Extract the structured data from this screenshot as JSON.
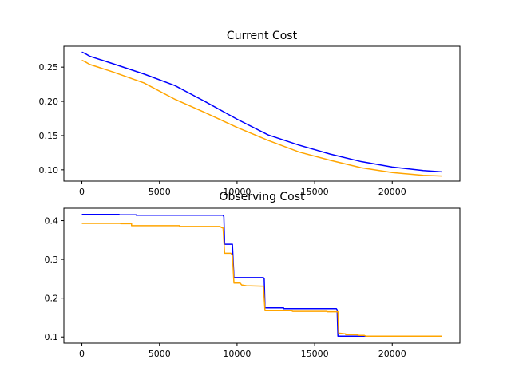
{
  "chart_data": [
    {
      "type": "line",
      "title": "Current Cost",
      "xlabel": "",
      "ylabel": "",
      "xlim": [
        -1160,
        24360
      ],
      "ylim": [
        0.0835,
        0.2805
      ],
      "xticks": [
        0,
        5000,
        10000,
        15000,
        20000
      ],
      "xtick_labels": [
        "0",
        "5000",
        "10000",
        "15000",
        "20000"
      ],
      "yticks": [
        0.1,
        0.15,
        0.2,
        0.25
      ],
      "ytick_labels": [
        "0.10",
        "0.15",
        "0.20",
        "0.25"
      ],
      "grid": false,
      "legend": false,
      "series": [
        {
          "color": "#0000ff",
          "points": [
            [
              0,
              0.272
            ],
            [
              200,
              0.27
            ],
            [
              500,
              0.266
            ],
            [
              2000,
              0.255
            ],
            [
              4000,
              0.24
            ],
            [
              6000,
              0.223
            ],
            [
              8000,
              0.199
            ],
            [
              10000,
              0.174
            ],
            [
              12000,
              0.151
            ],
            [
              14000,
              0.136
            ],
            [
              16000,
              0.123
            ],
            [
              18000,
              0.112
            ],
            [
              20000,
              0.104
            ],
            [
              22000,
              0.099
            ],
            [
              23200,
              0.097
            ]
          ]
        },
        {
          "color": "#ffa500",
          "points": [
            [
              0,
              0.26
            ],
            [
              200,
              0.258
            ],
            [
              500,
              0.254
            ],
            [
              2000,
              0.243
            ],
            [
              4000,
              0.227
            ],
            [
              6000,
              0.203
            ],
            [
              8000,
              0.183
            ],
            [
              10000,
              0.162
            ],
            [
              12000,
              0.143
            ],
            [
              14000,
              0.126
            ],
            [
              16000,
              0.114
            ],
            [
              18000,
              0.103
            ],
            [
              20000,
              0.096
            ],
            [
              22000,
              0.092
            ],
            [
              23200,
              0.091
            ]
          ]
        }
      ]
    },
    {
      "type": "line",
      "title": "Observing Cost",
      "xlabel": "",
      "ylabel": "",
      "xlim": [
        -1160,
        24360
      ],
      "ylim": [
        0.084,
        0.432
      ],
      "xticks": [
        0,
        5000,
        10000,
        15000,
        20000
      ],
      "xtick_labels": [
        "0",
        "5000",
        "10000",
        "15000",
        "20000"
      ],
      "yticks": [
        0.1,
        0.2,
        0.3,
        0.4
      ],
      "ytick_labels": [
        "0.1",
        "0.2",
        "0.3",
        "0.4"
      ],
      "grid": false,
      "legend": false,
      "series": [
        {
          "color": "#0000ff",
          "points": [
            [
              0,
              0.416
            ],
            [
              2400,
              0.416
            ],
            [
              2400,
              0.415
            ],
            [
              3500,
              0.415
            ],
            [
              3500,
              0.414
            ],
            [
              9100,
              0.414
            ],
            [
              9150,
              0.41
            ],
            [
              9200,
              0.339
            ],
            [
              9700,
              0.339
            ],
            [
              9800,
              0.253
            ],
            [
              11700,
              0.253
            ],
            [
              11750,
              0.25
            ],
            [
              11800,
              0.175
            ],
            [
              13000,
              0.175
            ],
            [
              13000,
              0.173
            ],
            [
              16400,
              0.173
            ],
            [
              16450,
              0.17
            ],
            [
              16500,
              0.102
            ],
            [
              23200,
              0.102
            ]
          ]
        },
        {
          "color": "#ffa500",
          "points": [
            [
              0,
              0.393
            ],
            [
              2500,
              0.393
            ],
            [
              2500,
              0.392
            ],
            [
              3200,
              0.392
            ],
            [
              3200,
              0.387
            ],
            [
              6300,
              0.387
            ],
            [
              6300,
              0.385
            ],
            [
              8900,
              0.385
            ],
            [
              9000,
              0.382
            ],
            [
              9100,
              0.381
            ],
            [
              9200,
              0.316
            ],
            [
              9600,
              0.316
            ],
            [
              9700,
              0.311
            ],
            [
              9800,
              0.239
            ],
            [
              10200,
              0.239
            ],
            [
              10300,
              0.234
            ],
            [
              10600,
              0.232
            ],
            [
              11600,
              0.231
            ],
            [
              11700,
              0.231
            ],
            [
              11800,
              0.168
            ],
            [
              13500,
              0.168
            ],
            [
              13600,
              0.166
            ],
            [
              15800,
              0.166
            ],
            [
              15800,
              0.165
            ],
            [
              16400,
              0.165
            ],
            [
              16500,
              0.165
            ],
            [
              16550,
              0.11
            ],
            [
              17000,
              0.108
            ],
            [
              17000,
              0.106
            ],
            [
              17800,
              0.106
            ],
            [
              17800,
              0.104
            ],
            [
              18200,
              0.104
            ],
            [
              18300,
              0.102
            ],
            [
              23200,
              0.102
            ]
          ]
        }
      ]
    }
  ]
}
